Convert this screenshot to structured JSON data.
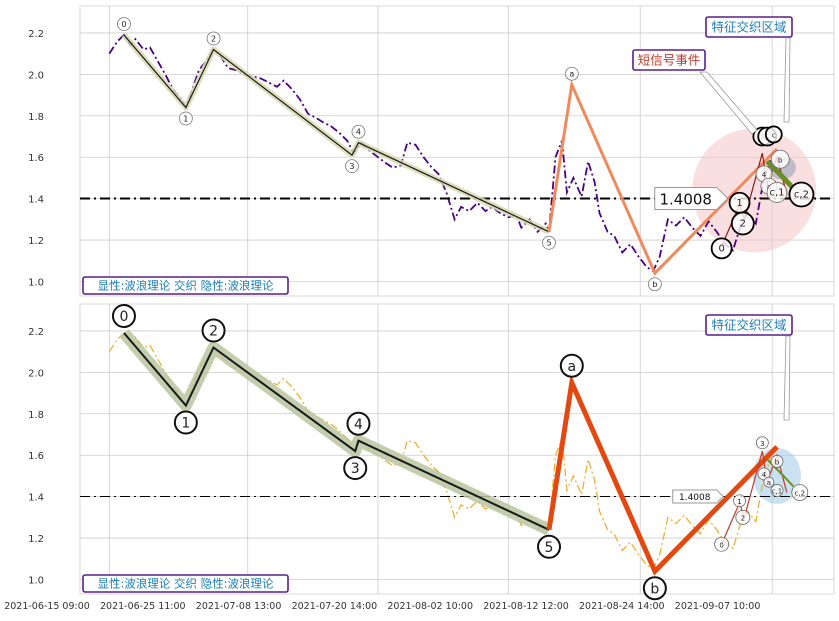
{
  "chart_data": [
    {
      "type": "line",
      "panel": "top",
      "ylim": [
        0.93,
        2.33
      ],
      "y_ticks": [
        "1.0",
        "1.2",
        "1.4",
        "1.6",
        "1.8",
        "2.0",
        "2.2"
      ],
      "grid": true,
      "reference_line": {
        "y": 1.4008,
        "style": "dash-dot",
        "label": "1.4008"
      },
      "legend_text": "显性:波浪理论 交织 隐性:波浪理论",
      "annotations": {
        "feature_zone": "特征交织区域",
        "short_signal": "短信号事件"
      },
      "price_series": [
        [
          0.0,
          2.1
        ],
        [
          0.5,
          2.16
        ],
        [
          0.9,
          2.19
        ],
        [
          1.3,
          2.14
        ],
        [
          1.6,
          2.17
        ],
        [
          2.1,
          2.12
        ],
        [
          2.5,
          2.13
        ],
        [
          3.0,
          2.06
        ],
        [
          3.5,
          1.99
        ],
        [
          3.9,
          1.93
        ],
        [
          4.4,
          1.88
        ],
        [
          4.7,
          1.84
        ],
        [
          5.1,
          1.93
        ],
        [
          5.5,
          2.02
        ],
        [
          6.0,
          2.07
        ],
        [
          6.4,
          2.12
        ],
        [
          6.8,
          2.09
        ],
        [
          7.3,
          2.03
        ],
        [
          7.8,
          2.02
        ],
        [
          8.3,
          2.0
        ],
        [
          8.8,
          1.99
        ],
        [
          9.3,
          1.98
        ],
        [
          9.8,
          1.96
        ],
        [
          10.3,
          1.94
        ],
        [
          10.7,
          1.97
        ],
        [
          11.2,
          1.93
        ],
        [
          11.7,
          1.88
        ],
        [
          12.2,
          1.81
        ],
        [
          12.7,
          1.79
        ],
        [
          13.1,
          1.77
        ],
        [
          13.6,
          1.75
        ],
        [
          14.1,
          1.72
        ],
        [
          14.6,
          1.68
        ],
        [
          15.0,
          1.62
        ],
        [
          15.5,
          1.67
        ],
        [
          16.0,
          1.63
        ],
        [
          16.5,
          1.6
        ],
        [
          17.0,
          1.57
        ],
        [
          17.4,
          1.55
        ],
        [
          17.9,
          1.56
        ],
        [
          18.3,
          1.67
        ],
        [
          18.8,
          1.66
        ],
        [
          19.3,
          1.6
        ],
        [
          19.8,
          1.55
        ],
        [
          20.2,
          1.52
        ],
        [
          20.7,
          1.43
        ],
        [
          21.2,
          1.3
        ],
        [
          21.6,
          1.36
        ],
        [
          22.1,
          1.34
        ],
        [
          22.6,
          1.38
        ],
        [
          23.1,
          1.34
        ],
        [
          23.5,
          1.36
        ],
        [
          24.0,
          1.33
        ],
        [
          24.5,
          1.31
        ],
        [
          25.0,
          1.32
        ],
        [
          25.3,
          1.26
        ],
        [
          25.8,
          1.3
        ],
        [
          26.3,
          1.24
        ],
        [
          26.8,
          1.28
        ],
        [
          27.0,
          1.24
        ],
        [
          27.4,
          1.6
        ],
        [
          27.8,
          1.68
        ],
        [
          28.1,
          1.43
        ],
        [
          28.5,
          1.5
        ],
        [
          29.0,
          1.41
        ],
        [
          29.4,
          1.58
        ],
        [
          29.8,
          1.48
        ],
        [
          30.1,
          1.33
        ],
        [
          30.6,
          1.24
        ],
        [
          31.0,
          1.22
        ],
        [
          31.5,
          1.14
        ],
        [
          32.0,
          1.18
        ],
        [
          32.5,
          1.12
        ],
        [
          33.0,
          1.07
        ],
        [
          33.4,
          1.05
        ],
        [
          33.8,
          1.12
        ],
        [
          34.3,
          1.3
        ],
        [
          34.8,
          1.27
        ],
        [
          35.3,
          1.31
        ],
        [
          35.8,
          1.26
        ],
        [
          36.3,
          1.22
        ],
        [
          36.8,
          1.29
        ],
        [
          37.3,
          1.24
        ],
        [
          37.8,
          1.18
        ],
        [
          38.3,
          1.15
        ],
        [
          38.8,
          1.28
        ],
        [
          39.2,
          1.33
        ],
        [
          39.7,
          1.28
        ],
        [
          40.2,
          1.5
        ],
        [
          40.6,
          1.58
        ],
        [
          41.0,
          1.55
        ]
      ],
      "wave_labels": [
        {
          "label": "0",
          "x": 0.9,
          "y": 2.19,
          "pos": "above"
        },
        {
          "label": "1",
          "x": 4.7,
          "y": 1.84,
          "pos": "below"
        },
        {
          "label": "2",
          "x": 6.4,
          "y": 2.12,
          "pos": "above"
        },
        {
          "label": "3",
          "x": 14.9,
          "y": 1.61,
          "pos": "below"
        },
        {
          "label": "4",
          "x": 15.3,
          "y": 1.67,
          "pos": "above"
        },
        {
          "label": "5",
          "x": 27.0,
          "y": 1.24,
          "pos": "below"
        },
        {
          "label": "a",
          "x": 28.4,
          "y": 1.95,
          "pos": "above"
        },
        {
          "label": "b",
          "x": 33.5,
          "y": 1.04,
          "pos": "below"
        }
      ],
      "small_cluster_labels": [
        {
          "label": "0",
          "x": 37.6,
          "y": 1.16,
          "r": 10
        },
        {
          "label": "1",
          "x": 38.7,
          "y": 1.38,
          "r": 10
        },
        {
          "label": "2",
          "x": 38.9,
          "y": 1.28,
          "r": 11
        },
        {
          "label": "3",
          "x": 40.1,
          "y": 1.7,
          "r": 9
        },
        {
          "label": "5",
          "x": 40.4,
          "y": 1.7,
          "r": 9
        },
        {
          "label": "c",
          "x": 40.8,
          "y": 1.71,
          "r": 8
        },
        {
          "label": "4",
          "x": 40.2,
          "y": 1.52,
          "r": 8
        },
        {
          "label": "a",
          "x": 40.5,
          "y": 1.46,
          "r": 8
        },
        {
          "label": "b",
          "x": 41.2,
          "y": 1.59,
          "r": 9
        },
        {
          "label": "c,1",
          "x": 41.0,
          "y": 1.43,
          "r": 10
        },
        {
          "label": "c,2",
          "x": 42.5,
          "y": 1.42,
          "r": 12
        }
      ]
    },
    {
      "type": "line",
      "panel": "bottom",
      "ylim": [
        0.93,
        2.33
      ],
      "y_ticks": [
        "1.0",
        "1.2",
        "1.4",
        "1.6",
        "1.8",
        "2.0",
        "2.2"
      ],
      "x_tick_labels": [
        "2021-06-15 09:00",
        "2021-06-25 11:00",
        "2021-07-08 13:00",
        "2021-07-20 14:00",
        "2021-08-02 10:00",
        "2021-08-12 12:00",
        "2021-08-24 14:00",
        "2021-09-07 10:00"
      ],
      "grid": true,
      "reference_line": {
        "y": 1.4008,
        "style": "dash-dot",
        "label": "1.4008"
      },
      "legend_text": "显性:波浪理论 交织 隐性:波浪理论",
      "annotations": {
        "feature_zone": "特征交织区域"
      },
      "wave_labels": [
        {
          "label": "0",
          "x": 0.9,
          "y": 2.19,
          "pos": "above"
        },
        {
          "label": "1",
          "x": 4.7,
          "y": 1.84,
          "pos": "below"
        },
        {
          "label": "2",
          "x": 6.4,
          "y": 2.12,
          "pos": "above"
        },
        {
          "label": "3",
          "x": 15.1,
          "y": 1.62,
          "pos": "below"
        },
        {
          "label": "4",
          "x": 15.3,
          "y": 1.67,
          "pos": "above"
        },
        {
          "label": "5",
          "x": 27.0,
          "y": 1.24,
          "pos": "below"
        },
        {
          "label": "a",
          "x": 28.4,
          "y": 1.95,
          "pos": "above"
        },
        {
          "label": "b",
          "x": 33.5,
          "y": 1.04,
          "pos": "below"
        }
      ],
      "small_cluster_labels": [
        {
          "label": "0",
          "x": 37.6,
          "y": 1.17,
          "r": 7
        },
        {
          "label": "1",
          "x": 38.7,
          "y": 1.38,
          "r": 6
        },
        {
          "label": "2",
          "x": 38.9,
          "y": 1.3,
          "r": 7
        },
        {
          "label": "3",
          "x": 40.1,
          "y": 1.66,
          "r": 6
        },
        {
          "label": "4",
          "x": 40.2,
          "y": 1.51,
          "r": 6
        },
        {
          "label": "a",
          "x": 40.5,
          "y": 1.47,
          "r": 5
        },
        {
          "label": "b",
          "x": 41.0,
          "y": 1.57,
          "r": 6
        },
        {
          "label": "c,1",
          "x": 41.0,
          "y": 1.43,
          "r": 6
        },
        {
          "label": "c,2",
          "x": 42.4,
          "y": 1.42,
          "r": 8
        }
      ]
    }
  ],
  "colors": {
    "top_price": "#4b0082",
    "bottom_price": "#f0b030",
    "impulse_top": "#1a1a1a",
    "impulse_halo_top": "#d7d9b0",
    "impulse_halo_bottom": "#b9c5a0",
    "correction_top": "#f08a5d",
    "correction_bottom": "#e2480f",
    "zone_pink": "#f4c4c4",
    "zone_blue": "#9ccbe8",
    "label_blue": "#1e7fb8",
    "label_red": "#c0392b",
    "box_border": "#5a1f8a",
    "grid": "#cccccc"
  }
}
